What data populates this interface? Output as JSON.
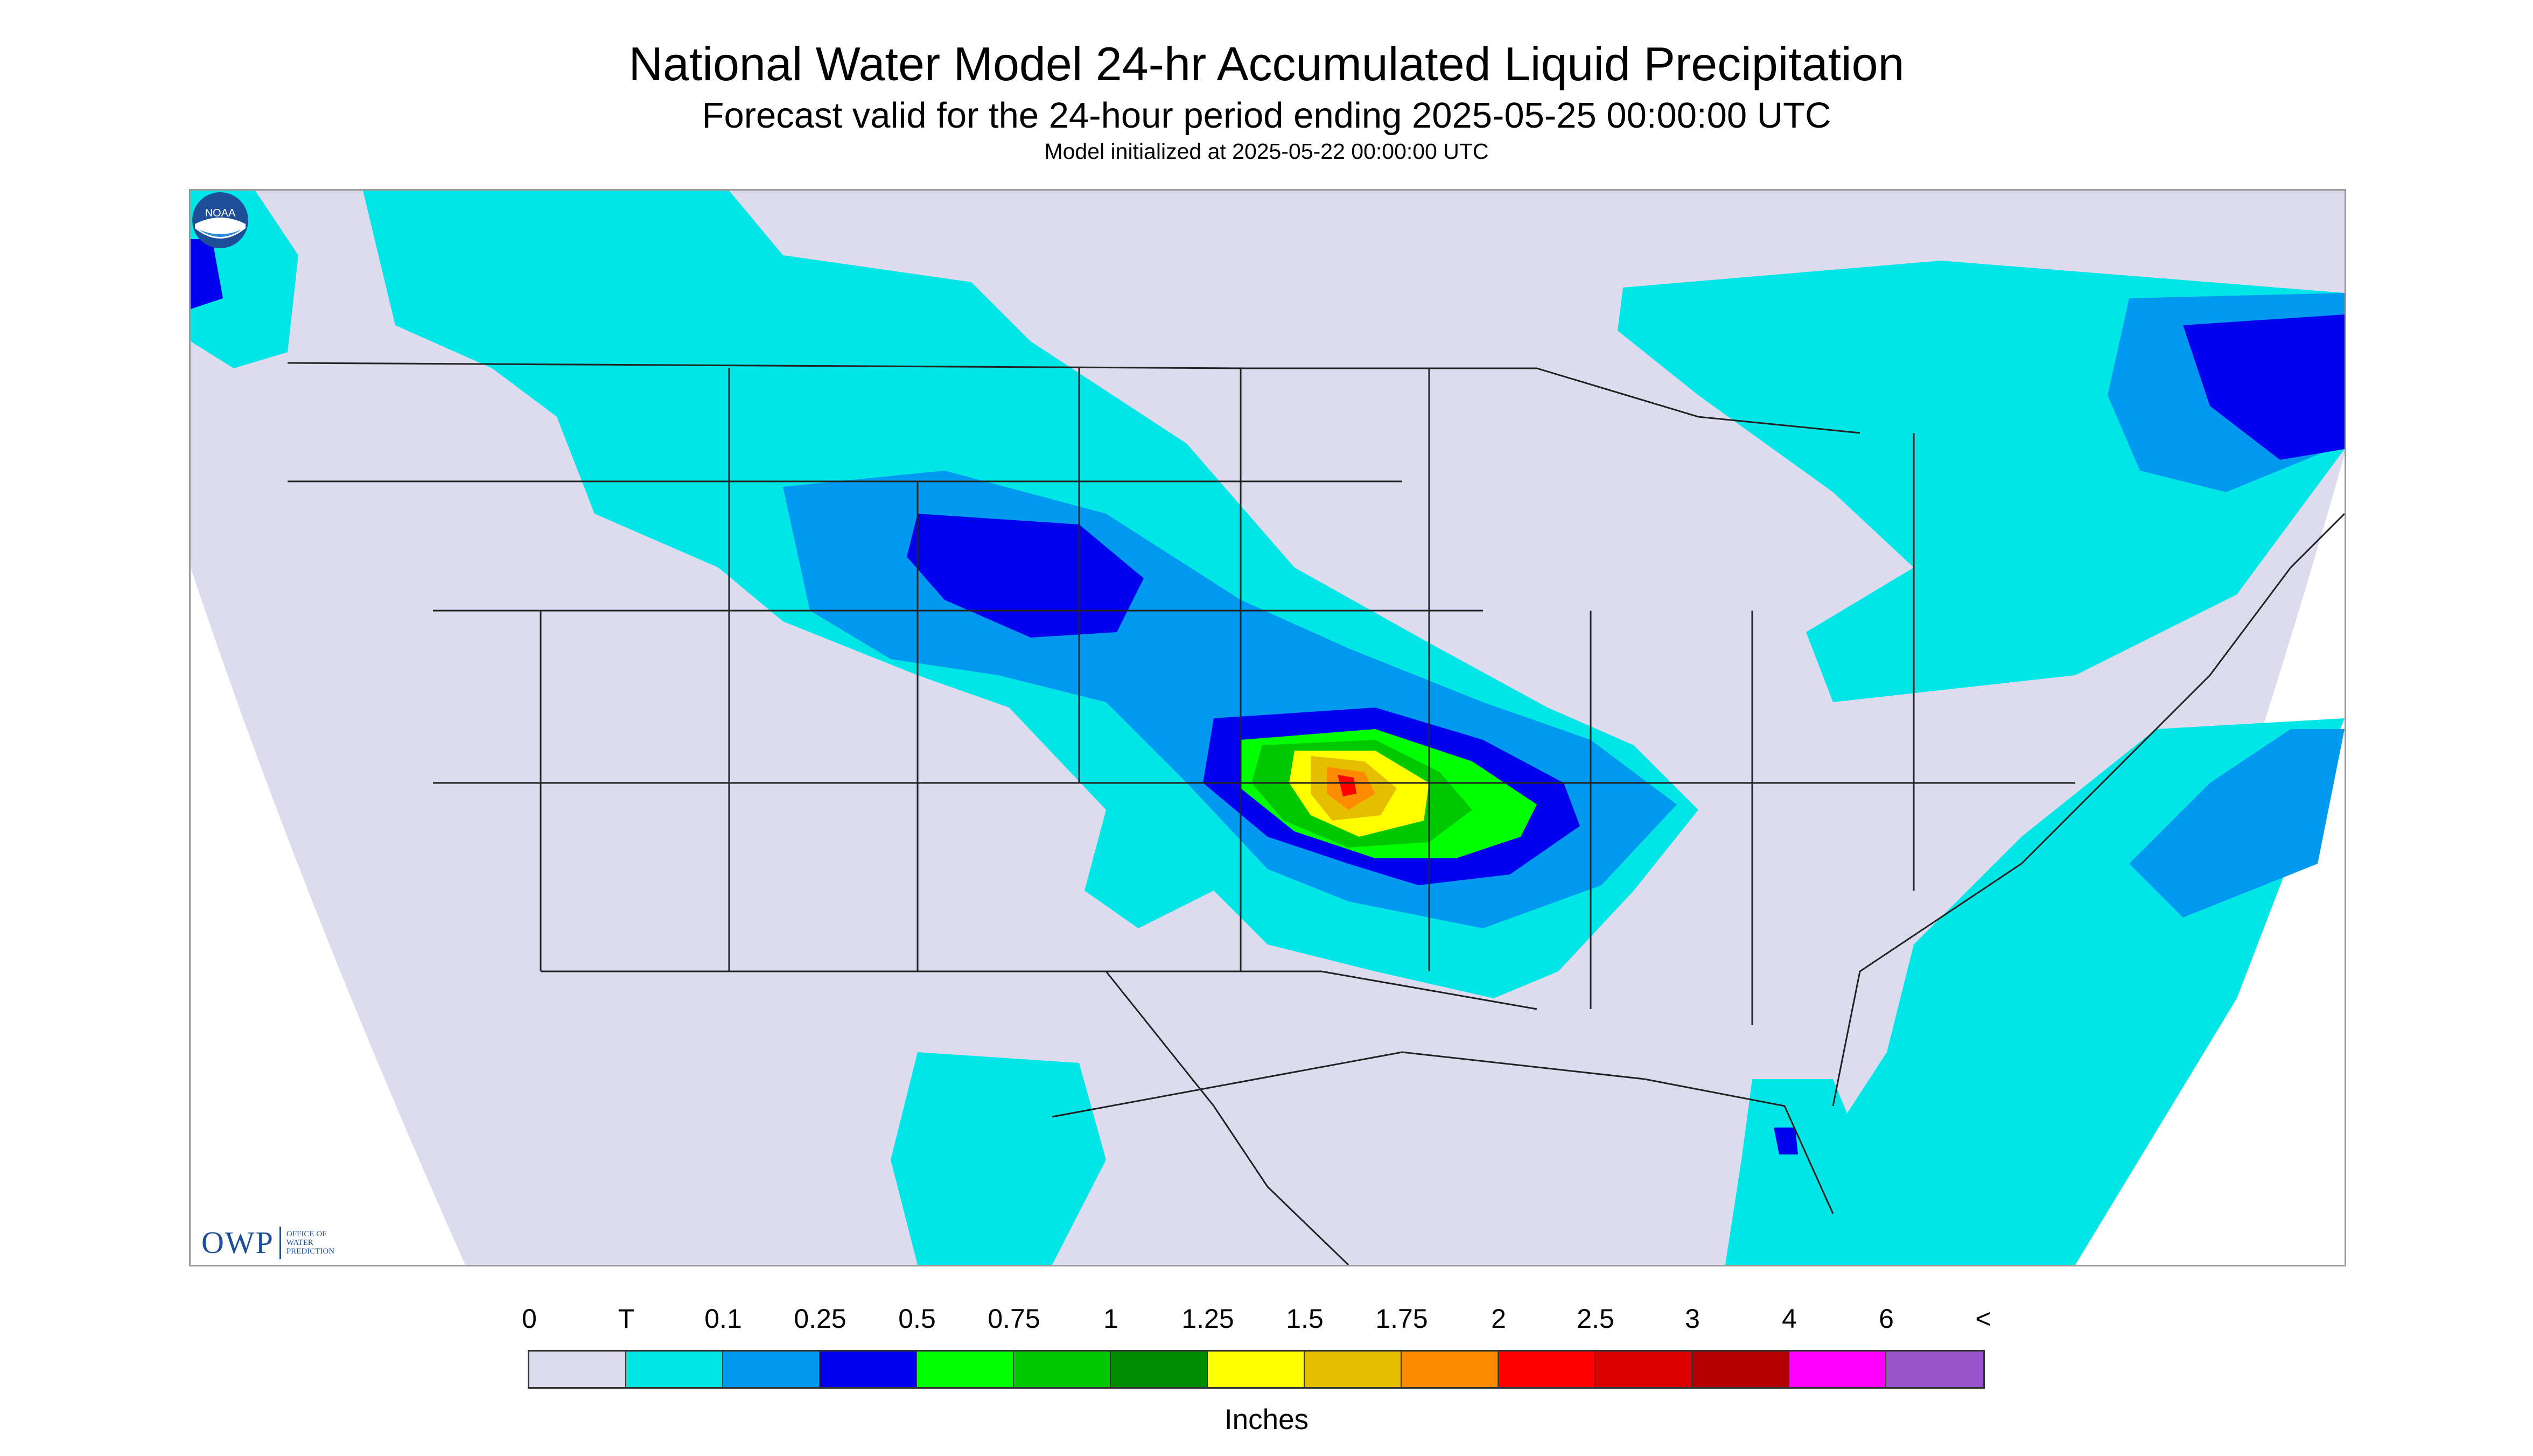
{
  "title": "National Water Model 24-hr Accumulated Liquid Precipitation",
  "subtitle": "Forecast valid for the 24-hour period ending 2025-05-25 00:00:00 UTC",
  "init_line": "Model initialized at 2025-05-22 00:00:00 UTC",
  "logo": {
    "owp": "OWP",
    "owp_sub": [
      "OFFICE OF",
      "WATER",
      "PREDICTION"
    ],
    "noaa": "NOAA"
  },
  "legend": {
    "unit_label": "Inches",
    "tick_labels": [
      "0",
      "T",
      "0.1",
      "0.25",
      "0.5",
      "0.75",
      "1",
      "1.25",
      "1.5",
      "1.75",
      "2",
      "2.5",
      "3",
      "4",
      "6",
      "<"
    ],
    "colors": [
      "#dcdcee",
      "#00e5e5",
      "#0099f0",
      "#0000ee",
      "#00ff00",
      "#00c800",
      "#008c00",
      "#ffff00",
      "#e6be00",
      "#ff8c00",
      "#ff0000",
      "#dc0000",
      "#b40000",
      "#ff00ff",
      "#9955cc"
    ]
  },
  "colors": {
    "no_data": "#ffffff",
    "land_background": "#dcdcee",
    "boundary_lines": "#222222"
  }
}
